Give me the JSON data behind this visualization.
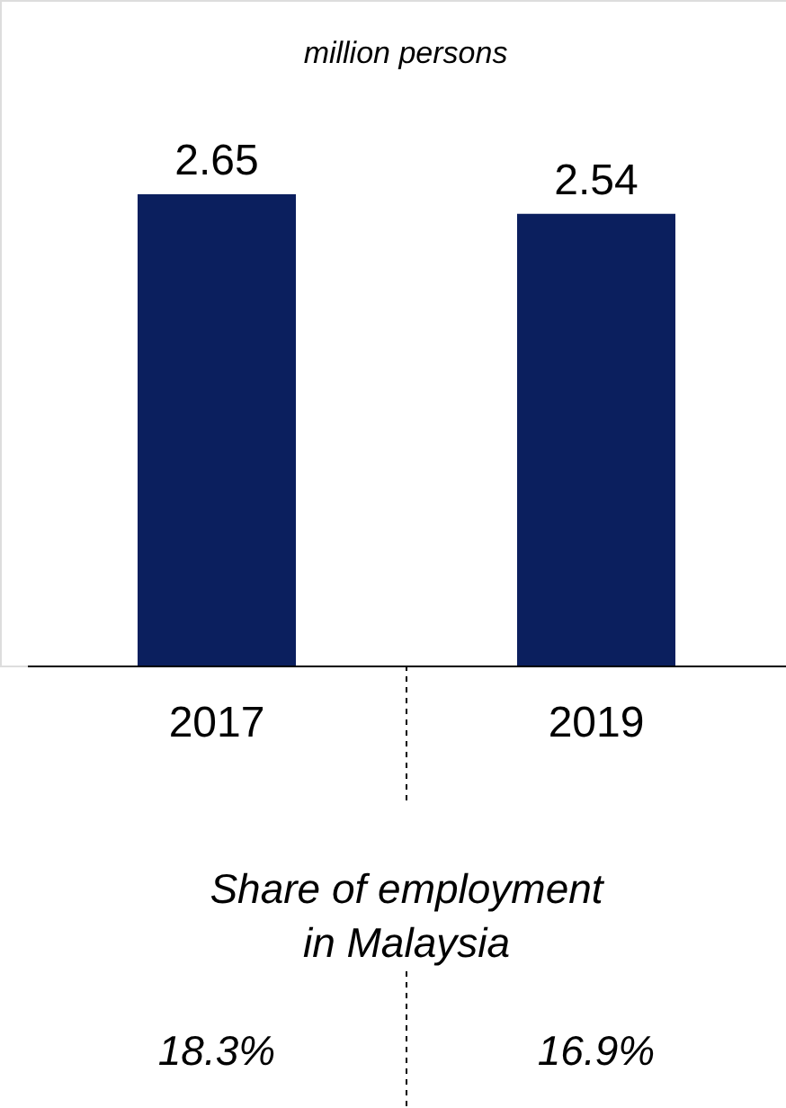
{
  "chart_data": {
    "type": "bar",
    "subtitle": "million persons",
    "categories": [
      "2017",
      "2019"
    ],
    "values": [
      2.65,
      2.54
    ],
    "color": "#0b1f5e",
    "data_labels": true,
    "annotations": [
      "Share of employment\nin Malaysia",
      "18.3%",
      "16.9%"
    ]
  }
}
